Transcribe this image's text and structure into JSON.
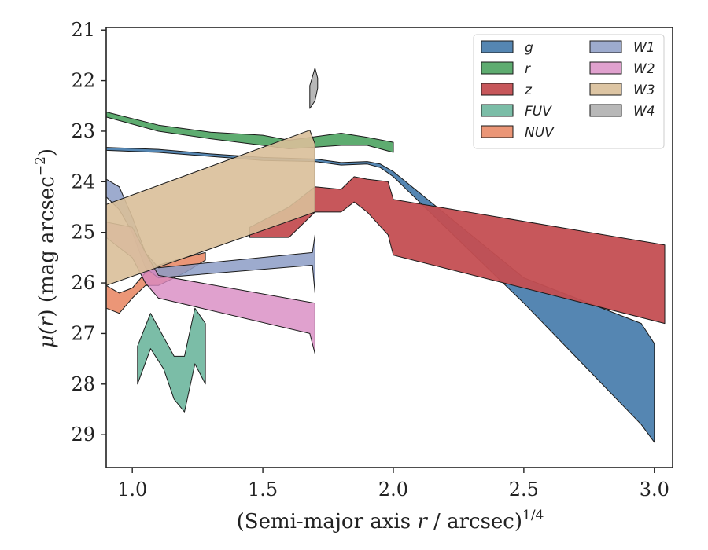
{
  "chart_data": {
    "type": "area",
    "title": "",
    "xlabel": "(Semi-major axis r / arcsec)",
    "xlabel_parts": {
      "prefix": "(Semi-major axis ",
      "var": "r",
      "suffix": " / arcsec)",
      "exponent": "1/4"
    },
    "ylabel": "μ(r) (mag arcsec⁻²)",
    "ylabel_parts": {
      "mu": "μ(",
      "var": "r",
      "close": ")",
      "unit": " (mag arcsec",
      "exp": "−2",
      "end": ")"
    },
    "xlim": [
      0.9,
      3.07
    ],
    "ylim": [
      29.65,
      20.95
    ],
    "y_inverted": true,
    "x_ticks": [
      "1.0",
      "1.5",
      "2.0",
      "2.5",
      "3.0"
    ],
    "x_tick_values": [
      1.0,
      1.5,
      2.0,
      2.5,
      3.0
    ],
    "y_ticks": [
      "21",
      "22",
      "23",
      "24",
      "25",
      "26",
      "27",
      "28",
      "29"
    ],
    "y_tick_values": [
      21,
      22,
      23,
      24,
      25,
      26,
      27,
      28,
      29
    ],
    "grid": false,
    "legend": {
      "placement": "top-right",
      "columns": 2
    },
    "series": [
      {
        "name": "g",
        "color": "#4c7fae",
        "alpha": 0.95,
        "upper": [
          [
            0.9,
            23.32
          ],
          [
            1.1,
            23.36
          ],
          [
            1.3,
            23.45
          ],
          [
            1.5,
            23.52
          ],
          [
            1.7,
            23.55
          ],
          [
            1.8,
            23.62
          ],
          [
            1.9,
            23.6
          ],
          [
            1.95,
            23.65
          ],
          [
            2.0,
            23.8
          ],
          [
            2.5,
            25.9
          ],
          [
            2.95,
            26.8
          ],
          [
            3.0,
            27.2
          ]
        ],
        "lower": [
          [
            0.9,
            23.38
          ],
          [
            1.1,
            23.42
          ],
          [
            1.3,
            23.5
          ],
          [
            1.5,
            23.58
          ],
          [
            1.7,
            23.6
          ],
          [
            1.8,
            23.67
          ],
          [
            1.9,
            23.65
          ],
          [
            1.95,
            23.72
          ],
          [
            2.0,
            23.9
          ],
          [
            2.5,
            26.4
          ],
          [
            2.95,
            28.8
          ],
          [
            3.0,
            29.15
          ]
        ]
      },
      {
        "name": "r",
        "color": "#55a868",
        "alpha": 0.95,
        "upper": [
          [
            0.9,
            22.62
          ],
          [
            1.1,
            22.88
          ],
          [
            1.3,
            23.02
          ],
          [
            1.5,
            23.08
          ],
          [
            1.6,
            23.18
          ],
          [
            1.8,
            23.04
          ],
          [
            1.9,
            23.12
          ],
          [
            2.0,
            23.22
          ]
        ],
        "lower": [
          [
            0.9,
            22.72
          ],
          [
            1.1,
            23.0
          ],
          [
            1.3,
            23.15
          ],
          [
            1.5,
            23.28
          ],
          [
            1.6,
            23.35
          ],
          [
            1.8,
            23.28
          ],
          [
            1.9,
            23.28
          ],
          [
            2.0,
            23.42
          ]
        ]
      },
      {
        "name": "z",
        "color": "#c44e52",
        "alpha": 0.95,
        "upper": [
          [
            1.45,
            24.9
          ],
          [
            1.6,
            24.5
          ],
          [
            1.7,
            24.1
          ],
          [
            1.8,
            24.15
          ],
          [
            1.85,
            23.9
          ],
          [
            1.9,
            23.95
          ],
          [
            1.98,
            24.0
          ],
          [
            2.0,
            24.35
          ],
          [
            3.04,
            25.25
          ]
        ],
        "lower": [
          [
            1.45,
            25.1
          ],
          [
            1.6,
            25.1
          ],
          [
            1.7,
            24.6
          ],
          [
            1.8,
            24.6
          ],
          [
            1.85,
            24.4
          ],
          [
            1.9,
            24.6
          ],
          [
            1.98,
            25.05
          ],
          [
            2.0,
            25.45
          ],
          [
            3.04,
            26.8
          ]
        ]
      },
      {
        "name": "FUV",
        "color": "#64b198",
        "alpha": 0.85,
        "upper": [
          [
            1.02,
            27.25
          ],
          [
            1.07,
            26.6
          ],
          [
            1.16,
            27.45
          ],
          [
            1.2,
            27.45
          ],
          [
            1.24,
            26.5
          ],
          [
            1.28,
            26.8
          ]
        ],
        "lower": [
          [
            1.02,
            28.0
          ],
          [
            1.07,
            27.3
          ],
          [
            1.12,
            27.7
          ],
          [
            1.16,
            28.3
          ],
          [
            1.2,
            28.55
          ],
          [
            1.24,
            27.6
          ],
          [
            1.28,
            28.0
          ]
        ]
      },
      {
        "name": "NUV",
        "color": "#e8845f",
        "alpha": 0.85,
        "upper": [
          [
            0.9,
            26.05
          ],
          [
            0.95,
            26.2
          ],
          [
            1.0,
            26.1
          ],
          [
            1.05,
            25.8
          ],
          [
            1.1,
            25.65
          ],
          [
            1.2,
            25.5
          ],
          [
            1.28,
            25.4
          ]
        ],
        "lower": [
          [
            0.9,
            26.5
          ],
          [
            0.95,
            26.6
          ],
          [
            1.0,
            26.3
          ],
          [
            1.05,
            26.05
          ],
          [
            1.1,
            26.05
          ],
          [
            1.2,
            25.8
          ],
          [
            1.28,
            25.55
          ]
        ]
      },
      {
        "name": "W1",
        "color": "#8c9cc6",
        "alpha": 0.85,
        "upper": [
          [
            0.9,
            23.95
          ],
          [
            0.95,
            24.1
          ],
          [
            1.0,
            24.7
          ],
          [
            1.05,
            25.4
          ],
          [
            1.1,
            25.7
          ],
          [
            1.69,
            25.4
          ],
          [
            1.7,
            25.05
          ]
        ],
        "lower": [
          [
            0.9,
            24.3
          ],
          [
            0.95,
            24.55
          ],
          [
            1.0,
            25.0
          ],
          [
            1.05,
            25.7
          ],
          [
            1.1,
            25.9
          ],
          [
            1.69,
            25.65
          ],
          [
            1.7,
            26.2
          ]
        ]
      },
      {
        "name": "W2",
        "color": "#d889c2",
        "alpha": 0.8,
        "upper": [
          [
            0.9,
            24.8
          ],
          [
            1.0,
            24.9
          ],
          [
            1.05,
            25.4
          ],
          [
            1.1,
            25.85
          ],
          [
            1.7,
            26.4
          ]
        ],
        "lower": [
          [
            0.9,
            25.1
          ],
          [
            1.0,
            25.5
          ],
          [
            1.05,
            26.0
          ],
          [
            1.1,
            26.3
          ],
          [
            1.68,
            27.0
          ],
          [
            1.7,
            27.4
          ]
        ]
      },
      {
        "name": "W3",
        "color": "#d9bf99",
        "alpha": 0.9,
        "upper": [
          [
            0.9,
            24.45
          ],
          [
            1.68,
            22.98
          ],
          [
            1.7,
            23.25
          ]
        ],
        "lower": [
          [
            0.9,
            26.05
          ],
          [
            1.7,
            24.6
          ]
        ]
      },
      {
        "name": "W4",
        "color": "#b4b4b4",
        "alpha": 0.95,
        "upper": [
          [
            1.68,
            22.1
          ],
          [
            1.7,
            21.75
          ],
          [
            1.71,
            21.95
          ]
        ],
        "lower": [
          [
            1.68,
            22.55
          ],
          [
            1.7,
            22.4
          ],
          [
            1.71,
            22.15
          ]
        ]
      }
    ]
  }
}
